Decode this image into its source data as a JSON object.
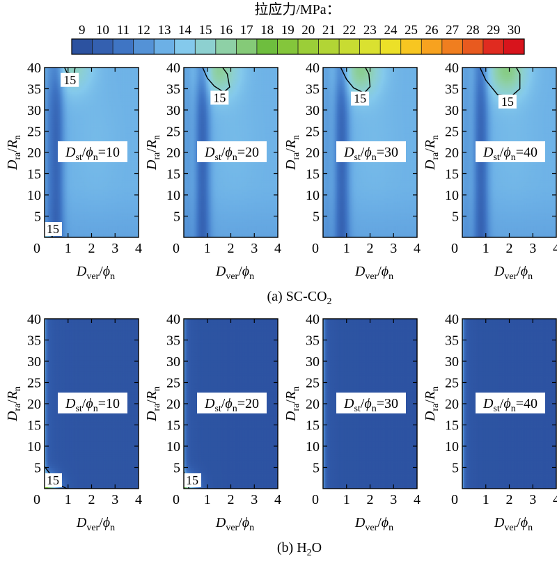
{
  "chart_data": {
    "type": "heatmap",
    "colorbar": {
      "title": "拉应力/MPa：",
      "min": 9,
      "max": 30,
      "ticks": [
        9,
        10,
        11,
        12,
        13,
        14,
        15,
        16,
        17,
        18,
        19,
        20,
        21,
        22,
        23,
        24,
        25,
        26,
        27,
        28,
        29,
        30
      ],
      "colors": [
        "#2c52a0",
        "#3460b0",
        "#3f75c4",
        "#5492d6",
        "#6cb0e6",
        "#84c9ec",
        "#8dd0d0",
        "#8ed0a6",
        "#85ca78",
        "#6ebe3e",
        "#84c63b",
        "#9bce38",
        "#b2d535",
        "#c8dc32",
        "#dae130",
        "#ece028",
        "#f7c621",
        "#f7a21f",
        "#f07e1f",
        "#e85a1f",
        "#e02b20",
        "#d8141c"
      ]
    },
    "x_axis": {
      "label_main": "D",
      "label_sub": "ver",
      "label_sep": "/",
      "label_sym": "ϕ",
      "label_sym_sub": "n",
      "range": [
        0,
        4
      ],
      "ticks": [
        "0",
        "1",
        "2",
        "3",
        "4"
      ]
    },
    "y_axis": {
      "label_main": "D",
      "label_sub": "ra",
      "label_sep": "/",
      "label_sym": "R",
      "label_sym_sub": "n",
      "range": [
        0,
        40
      ],
      "ticks": [
        "5",
        "10",
        "15",
        "20",
        "25",
        "30",
        "35",
        "40"
      ]
    },
    "groups": [
      {
        "caption_main": "(a) SC-CO",
        "caption_sub": "2",
        "caption_tail": "",
        "panels": [
          {
            "inset_main": "D",
            "inset_sub": "st",
            "inset_sep": "/",
            "inset_sym": "ϕ",
            "inset_sym_sub": "n",
            "inset_value": "=10",
            "stress_field": {
              "tip_peak_MPa": 15.4,
              "top_peak_MPa": 15.3,
              "top_peak_at": [
                1.2,
                38
              ],
              "min_near_x": 0.5
            },
            "contours": [
              {
                "value": 15,
                "label": "15",
                "points": [
                  [
                    0.85,
                    40
                  ],
                  [
                    0.95,
                    38.8
                  ],
                  [
                    1.25,
                    38.4
                  ],
                  [
                    1.3,
                    40
                  ]
                ]
              },
              {
                "value": 15,
                "label": "15",
                "points": [
                  [
                    0,
                    1.5
                  ],
                  [
                    0.25,
                    0.8
                  ],
                  [
                    0.35,
                    0
                  ]
                ]
              }
            ]
          },
          {
            "inset_main": "D",
            "inset_sub": "st",
            "inset_sep": "/",
            "inset_sym": "ϕ",
            "inset_sym_sub": "n",
            "inset_value": "=20",
            "stress_field": {
              "top_peak_MPa": 16.1,
              "top_peak_at": [
                1.5,
                37
              ],
              "min_near_x": 0.8
            },
            "contours": [
              {
                "value": 15,
                "label": "15",
                "points": [
                  [
                    0.8,
                    40
                  ],
                  [
                    1.0,
                    37.5
                  ],
                  [
                    1.3,
                    35.6
                  ],
                  [
                    1.7,
                    34.2
                  ],
                  [
                    1.95,
                    35.4
                  ],
                  [
                    1.85,
                    38.5
                  ],
                  [
                    1.65,
                    40
                  ]
                ]
              }
            ]
          },
          {
            "inset_main": "D",
            "inset_sub": "st",
            "inset_sep": "/",
            "inset_sym": "ϕ",
            "inset_sym_sub": "n",
            "inset_value": "=30",
            "stress_field": {
              "top_peak_MPa": 16.3,
              "top_peak_at": [
                1.6,
                37
              ],
              "min_near_x": 0.8
            },
            "contours": [
              {
                "value": 15,
                "label": "15",
                "points": [
                  [
                    0.75,
                    40
                  ],
                  [
                    1.0,
                    37.2
                  ],
                  [
                    1.3,
                    35.2
                  ],
                  [
                    1.75,
                    34.0
                  ],
                  [
                    2.0,
                    35.5
                  ],
                  [
                    1.95,
                    38.5
                  ],
                  [
                    1.8,
                    40
                  ]
                ]
              }
            ]
          },
          {
            "inset_main": "D",
            "inset_sub": "st",
            "inset_sep": "/",
            "inset_sym": "ϕ",
            "inset_sym_sub": "n",
            "inset_value": "=40",
            "stress_field": {
              "top_peak_MPa": 16.6,
              "top_peak_at": [
                1.9,
                37
              ],
              "min_near_x": 0.8
            },
            "contours": [
              {
                "value": 15,
                "label": "15",
                "points": [
                  [
                    0.75,
                    40
                  ],
                  [
                    1.0,
                    37.0
                  ],
                  [
                    1.5,
                    33.6
                  ],
                  [
                    2.1,
                    33.3
                  ],
                  [
                    2.45,
                    35.0
                  ],
                  [
                    2.45,
                    38.5
                  ],
                  [
                    2.3,
                    40
                  ]
                ]
              }
            ]
          }
        ]
      },
      {
        "caption_main": "(b) H",
        "caption_sub": "2",
        "caption_tail": "O",
        "panels": [
          {
            "inset_main": "D",
            "inset_sub": "st",
            "inset_sep": "/",
            "inset_sym": "ϕ",
            "inset_sym_sub": "n",
            "inset_value": "=10",
            "stress_field": {
              "tip_peak_MPa": 17.0,
              "base_MPa": 9.2,
              "edge_strip_MPa": 13
            },
            "contours": [
              {
                "value": 15,
                "label": "15",
                "points": [
                  [
                    0,
                    5.2
                  ],
                  [
                    0.3,
                    3.0
                  ],
                  [
                    0.65,
                    0.8
                  ],
                  [
                    0.95,
                    0
                  ]
                ]
              }
            ]
          },
          {
            "inset_main": "D",
            "inset_sub": "st",
            "inset_sep": "/",
            "inset_sym": "ϕ",
            "inset_sym_sub": "n",
            "inset_value": "=20",
            "stress_field": {
              "tip_peak_MPa": 15.3,
              "base_MPa": 9.1,
              "edge_strip_MPa": 13
            },
            "contours": [
              {
                "value": 15,
                "label": "15",
                "points": [
                  [
                    0,
                    4.0
                  ],
                  [
                    0.12,
                    2.2
                  ],
                  [
                    0.22,
                    0
                  ]
                ]
              }
            ]
          },
          {
            "inset_main": "D",
            "inset_sub": "st",
            "inset_sep": "/",
            "inset_sym": "ϕ",
            "inset_sym_sub": "n",
            "inset_value": "=30",
            "stress_field": {
              "base_MPa": 9.1,
              "edge_strip_MPa": 13
            },
            "contours": []
          },
          {
            "inset_main": "D",
            "inset_sub": "st",
            "inset_sep": "/",
            "inset_sym": "ϕ",
            "inset_sym_sub": "n",
            "inset_value": "=40",
            "stress_field": {
              "base_MPa": 9.1,
              "edge_strip_MPa": 13
            },
            "contours": []
          }
        ]
      }
    ]
  }
}
